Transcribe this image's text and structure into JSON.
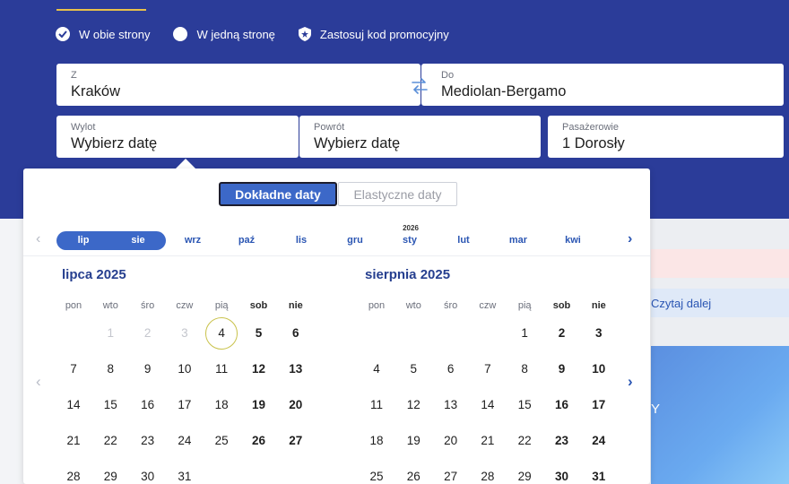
{
  "trip": {
    "round_trip": "W obie strony",
    "one_way": "W jedną stronę",
    "promo": "Zastosuj kod promocyjny"
  },
  "search": {
    "from_label": "Z",
    "from_value": "Kraków",
    "to_label": "Do",
    "to_value": "Mediolan-Bergamo",
    "depart_label": "Wylot",
    "depart_value": "Wybierz datę",
    "return_label": "Powrót",
    "return_value": "Wybierz datę",
    "pax_label": "Pasażerowie",
    "pax_value": "1 Dorosły"
  },
  "side": {
    "read_more": "Czytaj dalej",
    "banner_letter": "Y"
  },
  "calendar": {
    "toggle_exact": "Dokładne daty",
    "toggle_flexible": "Elastyczne daty",
    "year_marker": "2026",
    "month_strip": [
      "lip",
      "sie",
      "wrz",
      "paź",
      "lis",
      "gru",
      "sty",
      "lut",
      "mar",
      "kwi"
    ],
    "selected_strip_months": [
      "lip",
      "sie"
    ],
    "weekdays": [
      "pon",
      "wto",
      "śro",
      "czw",
      "pią",
      "sob",
      "nie"
    ],
    "months": [
      {
        "title": "lipca 2025",
        "start_offset": 1,
        "days": 31,
        "past_through": 3,
        "today": 4
      },
      {
        "title": "sierpnia 2025",
        "start_offset": 4,
        "days": 31,
        "past_through": 0,
        "today": null
      }
    ],
    "visible_rows": 5
  },
  "colors": {
    "hero": "#2b3c99",
    "accent": "#3c68c8",
    "link": "#2b56b3",
    "today_ring": "#c9c24b"
  }
}
